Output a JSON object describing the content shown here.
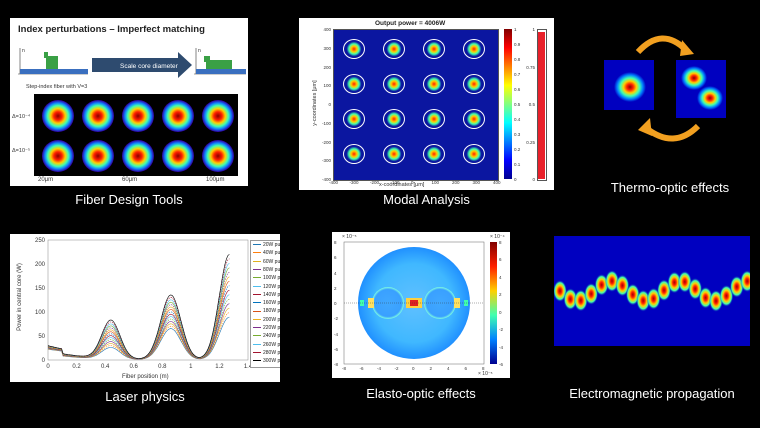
{
  "captions": {
    "fiber_design": "Fiber Design Tools",
    "modal_analysis": "Modal Analysis",
    "thermo_optic": "Thermo-optic effects",
    "laser_physics": "Laser physics",
    "elasto_optic": "Elasto-optic effects",
    "em_propagation": "Electromagnetic propagation"
  },
  "fiber_panel": {
    "title": "Index perturbations – Imperfect matching",
    "arrow_label": "Scale core diameter",
    "bullet": "Step-index fiber with V=3",
    "row_labels": [
      "Δ=10⁻⁴",
      "Δ=10⁻⁵"
    ],
    "sizes": [
      "20μm",
      "60μm",
      "100μm"
    ],
    "axis_n": "n",
    "axis_r": "r"
  },
  "modal_panel": {
    "title": "Output power = 4006W",
    "xlabel": "x-coordinates [μm]",
    "ylabel": "y-coordinates [μm]",
    "xticks": [
      "-400",
      "-300",
      "-200",
      "-100",
      "0",
      "100",
      "200",
      "300",
      "400"
    ],
    "yticks": [
      "400",
      "300",
      "200",
      "100",
      "0",
      "-100",
      "-200",
      "-300",
      "-400"
    ],
    "cbar_ticks": [
      "1",
      "0.9",
      "0.8",
      "0.7",
      "0.6",
      "0.5",
      "0.4",
      "0.3",
      "0.2",
      "0.1",
      "0"
    ],
    "bar_ticks": [
      "1",
      "0.75",
      "0.5",
      "0.25",
      "0"
    ]
  },
  "laser_panel": {
    "ylabel": "Power in central core (W)",
    "xlabel": "Fiber position (m)",
    "yticks": [
      "250",
      "200",
      "150",
      "100",
      "50",
      "0"
    ],
    "xticks": [
      "0",
      "0.2",
      "0.4",
      "0.6",
      "0.8",
      "1",
      "1.2",
      "1.4"
    ],
    "legend": [
      "20W pump",
      "40W pump",
      "60W pump",
      "80W pump",
      "100W pump",
      "120W pump",
      "140W pump",
      "160W pump",
      "180W pump",
      "200W pump",
      "220W pump",
      "240W pump",
      "260W pump",
      "280W pump",
      "300W pump"
    ]
  },
  "elasto_panel": {
    "exp_label": "× 10⁻⁵",
    "xexp_label": "× 10⁻⁵",
    "xticks": [
      "-8",
      "-6",
      "-4",
      "-2",
      "0",
      "2",
      "4",
      "6",
      "8"
    ],
    "yticks": [
      "8",
      "6",
      "4",
      "2",
      "0",
      "-2",
      "-4",
      "-6",
      "-8"
    ],
    "cbar_ticks": [
      "8",
      "6",
      "4",
      "2",
      "0",
      "-2",
      "-4",
      "-6"
    ],
    "cbar_exp": "× 10⁻⁴"
  }
}
